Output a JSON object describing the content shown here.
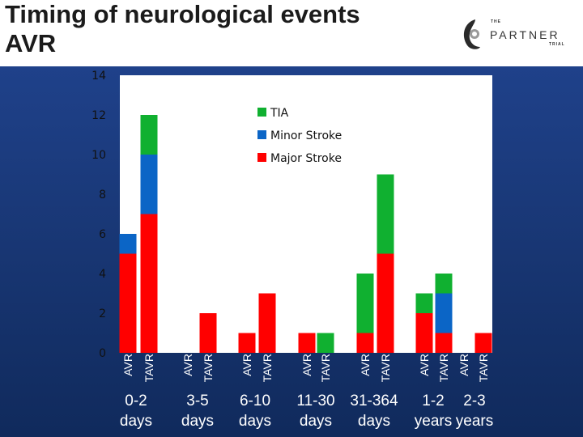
{
  "slide": {
    "title_line1": "Timing of neurological events",
    "title_line2": "AVR"
  },
  "logo": {
    "the": "THE",
    "name": "PARTNER",
    "trial": "TRIAL"
  },
  "colors": {
    "TIA": "#10b030",
    "Minor Stroke": "#0b65c6",
    "Major Stroke": "#ff0000"
  },
  "chart_data": {
    "type": "bar",
    "stacked": true,
    "title": "Timing of neurological events AVR",
    "ylim": [
      0,
      14
    ],
    "yticks": [
      0,
      2,
      4,
      6,
      8,
      10,
      12,
      14
    ],
    "legend": [
      "TIA",
      "Minor Stroke",
      "Major Stroke"
    ],
    "legend_position": "top-center",
    "groups": [
      {
        "label_line1": "0-2",
        "label_line2": "days",
        "bars": [
          "AVR",
          "TAVR"
        ]
      },
      {
        "label_line1": "3-5",
        "label_line2": "days",
        "bars": [
          "AVR",
          "TAVR"
        ]
      },
      {
        "label_line1": "6-10",
        "label_line2": "days",
        "bars": [
          "AVR",
          "TAVR"
        ]
      },
      {
        "label_line1": "11-30",
        "label_line2": "days",
        "bars": [
          "AVR",
          "TAVR"
        ]
      },
      {
        "label_line1": "31-364",
        "label_line2": "days",
        "bars": [
          "AVR",
          "TAVR"
        ]
      },
      {
        "label_line1": "1-2",
        "label_line2": "years",
        "bars": [
          "AVR",
          "TAVR"
        ]
      },
      {
        "label_line1": "2-3",
        "label_line2": "years",
        "bars": [
          "AVR",
          "TAVR"
        ]
      }
    ],
    "categories": [
      "0-2 days AVR",
      "0-2 days TAVR",
      "3-5 days AVR",
      "3-5 days TAVR",
      "6-10 days AVR",
      "6-10 days TAVR",
      "11-30 days AVR",
      "11-30 days TAVR",
      "31-364 days AVR",
      "31-364 days TAVR",
      "1-2 years AVR",
      "1-2 years TAVR",
      "2-3 years AVR",
      "2-3 years TAVR"
    ],
    "series": [
      {
        "name": "Major Stroke",
        "values": [
          5,
          7,
          0,
          2,
          1,
          3,
          1,
          0,
          1,
          5,
          2,
          1,
          0,
          1
        ]
      },
      {
        "name": "Minor Stroke",
        "values": [
          1,
          3,
          0,
          0,
          0,
          0,
          0,
          0,
          0,
          0,
          0,
          2,
          0,
          0
        ]
      },
      {
        "name": "TIA",
        "values": [
          0,
          2,
          0,
          0,
          0,
          0,
          0,
          1,
          3,
          4,
          1,
          1,
          0,
          0
        ]
      }
    ]
  }
}
